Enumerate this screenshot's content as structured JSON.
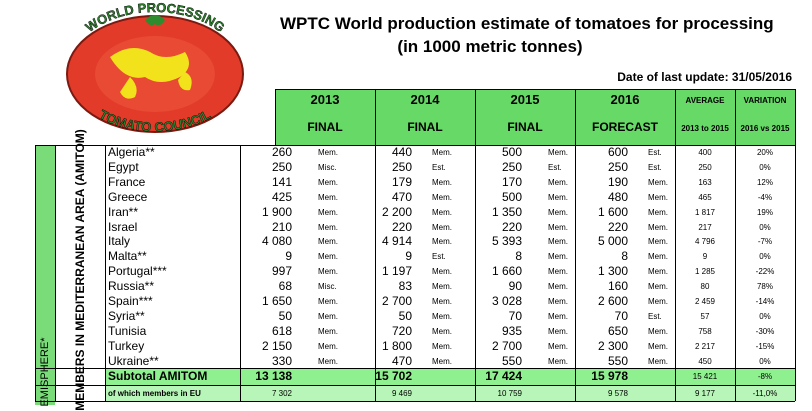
{
  "logo": {
    "top": "WORLD PROCESSING",
    "bottom": "TOMATO COUNCIL"
  },
  "header": {
    "title": "WPTC World production estimate of tomatoes for processing",
    "subtitle": "(in 1000 metric tonnes)",
    "update": "Date of last update: 31/05/2016"
  },
  "table": {
    "years": [
      "2013",
      "2014",
      "2015",
      "2016"
    ],
    "status": [
      "FINAL",
      "FINAL",
      "FINAL",
      "FORECAST"
    ],
    "average": {
      "title": "AVERAGE",
      "sub": "2013 to 2015"
    },
    "variation": {
      "title": "VARIATION",
      "sub": "2016 vs 2015"
    },
    "group_label": "MEMBERS IN MEDITERRANEAN AREA (AMITOM)",
    "hemisphere_label": "EMISPHERE*",
    "rows": [
      {
        "name": "Algeria**",
        "cells": [
          "260",
          "Mem.",
          "440",
          "Mem.",
          "500",
          "Mem.",
          "600",
          "Est.",
          "400",
          "20%"
        ]
      },
      {
        "name": "Egypt",
        "cells": [
          "250",
          "Misc.",
          "250",
          "Est.",
          "250",
          "Est.",
          "250",
          "Est.",
          "250",
          "0%"
        ]
      },
      {
        "name": "France",
        "cells": [
          "141",
          "Mem.",
          "179",
          "Mem.",
          "170",
          "Mem.",
          "190",
          "Mem.",
          "163",
          "12%"
        ]
      },
      {
        "name": "Greece",
        "cells": [
          "425",
          "Mem.",
          "470",
          "Mem.",
          "500",
          "Mem.",
          "480",
          "Mem.",
          "465",
          "-4%"
        ]
      },
      {
        "name": "Iran**",
        "cells": [
          "1 900",
          "Mem.",
          "2 200",
          "Mem.",
          "1 350",
          "Mem.",
          "1 600",
          "Mem.",
          "1 817",
          "19%"
        ]
      },
      {
        "name": "Israel",
        "cells": [
          "210",
          "Mem.",
          "220",
          "Mem.",
          "220",
          "Mem.",
          "220",
          "Mem.",
          "217",
          "0%"
        ]
      },
      {
        "name": "Italy",
        "cells": [
          "4 080",
          "Mem.",
          "4 914",
          "Mem.",
          "5 393",
          "Mem.",
          "5 000",
          "Mem.",
          "4 796",
          "-7%"
        ]
      },
      {
        "name": "Malta**",
        "cells": [
          "9",
          "Mem.",
          "9",
          "Est.",
          "8",
          "Mem.",
          "8",
          "Mem.",
          "9",
          "0%"
        ]
      },
      {
        "name": "Portugal***",
        "cells": [
          "997",
          "Mem.",
          "1 197",
          "Mem.",
          "1 660",
          "Mem.",
          "1 300",
          "Mem.",
          "1 285",
          "-22%"
        ]
      },
      {
        "name": "Russia**",
        "cells": [
          "68",
          "Misc.",
          "83",
          "Mem.",
          "90",
          "Mem.",
          "160",
          "Mem.",
          "80",
          "78%"
        ]
      },
      {
        "name": "Spain***",
        "cells": [
          "1 650",
          "Mem.",
          "2 700",
          "Mem.",
          "3 028",
          "Mem.",
          "2 600",
          "Mem.",
          "2 459",
          "-14%"
        ]
      },
      {
        "name": "Syria**",
        "cells": [
          "50",
          "Mem.",
          "50",
          "Mem.",
          "70",
          "Mem.",
          "70",
          "Est.",
          "57",
          "0%"
        ]
      },
      {
        "name": "Tunisia",
        "cells": [
          "618",
          "Mem.",
          "720",
          "Mem.",
          "935",
          "Mem.",
          "650",
          "Mem.",
          "758",
          "-30%"
        ]
      },
      {
        "name": "Turkey",
        "cells": [
          "2 150",
          "Mem.",
          "1 800",
          "Mem.",
          "2 700",
          "Mem.",
          "2 300",
          "Mem.",
          "2 217",
          "-15%"
        ]
      },
      {
        "name": "Ukraine**",
        "cells": [
          "330",
          "Mem.",
          "470",
          "Mem.",
          "550",
          "Mem.",
          "550",
          "Mem.",
          "450",
          "0%"
        ]
      }
    ],
    "totals": [
      {
        "name": "Subtotal AMITOM",
        "cells": [
          "13 138",
          "15 702",
          "17 424",
          "15 978",
          "15 421",
          "-8%"
        ]
      },
      {
        "name": "of which members in EU",
        "cells": [
          "7 302",
          "9 469",
          "10 759",
          "9 578",
          "9 177",
          "-11,0%"
        ]
      }
    ]
  }
}
